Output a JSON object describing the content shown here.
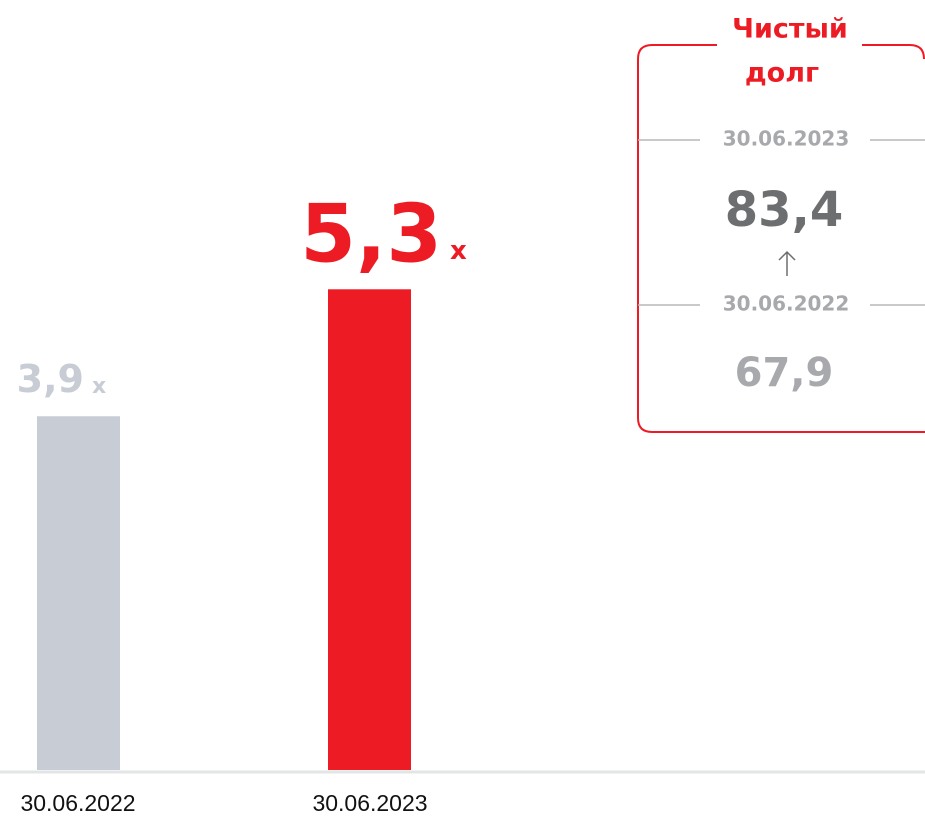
{
  "chart_data": {
    "type": "bar",
    "categories": [
      "30.06.2022",
      "30.06.2023"
    ],
    "values": [
      3.9,
      5.3
    ],
    "value_labels": [
      "3,9",
      "5,3"
    ],
    "unit": "x",
    "colors": [
      "#c8ccd4",
      "#ed1c24"
    ]
  },
  "panel": {
    "title": [
      "Чистый",
      "долг"
    ],
    "entries": [
      {
        "date": "30.06.2023",
        "value": "83,4"
      },
      {
        "date": "30.06.2022",
        "value": "67,9"
      }
    ]
  }
}
